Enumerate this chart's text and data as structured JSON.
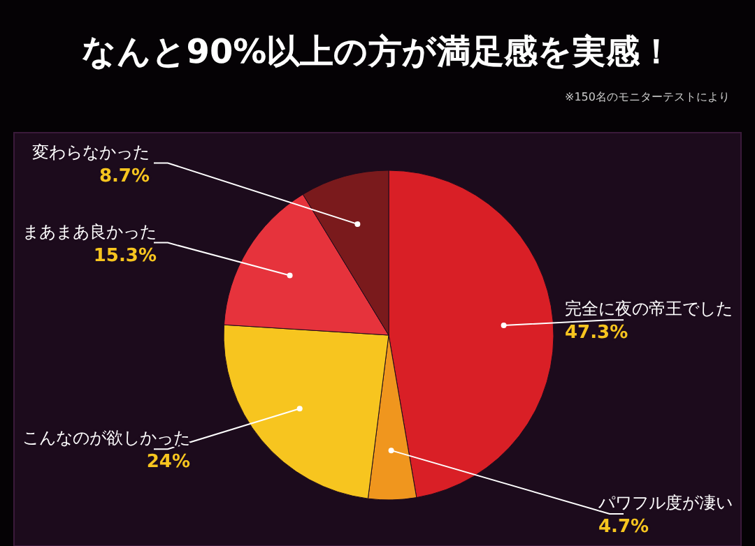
{
  "chart_data": {
    "type": "pie",
    "title": "なんと90%以上の方が満足感を実感！",
    "annotations": [
      "※150名のモニターテストにより"
    ],
    "categories": [
      "完全に夜の帝王でした",
      "パワフル度が凄い",
      "こんなのが欲しかった",
      "まあまあ良かった",
      "変わらなかった"
    ],
    "values": [
      47.3,
      4.7,
      24,
      15.3,
      8.7
    ],
    "value_labels": [
      "47.3%",
      "4.7%",
      "24%",
      "15.3%",
      "8.7%"
    ],
    "colors": [
      "#d91f26",
      "#f0961e",
      "#f7c51f",
      "#e6333c",
      "#7a1a1c"
    ],
    "legend": false
  }
}
